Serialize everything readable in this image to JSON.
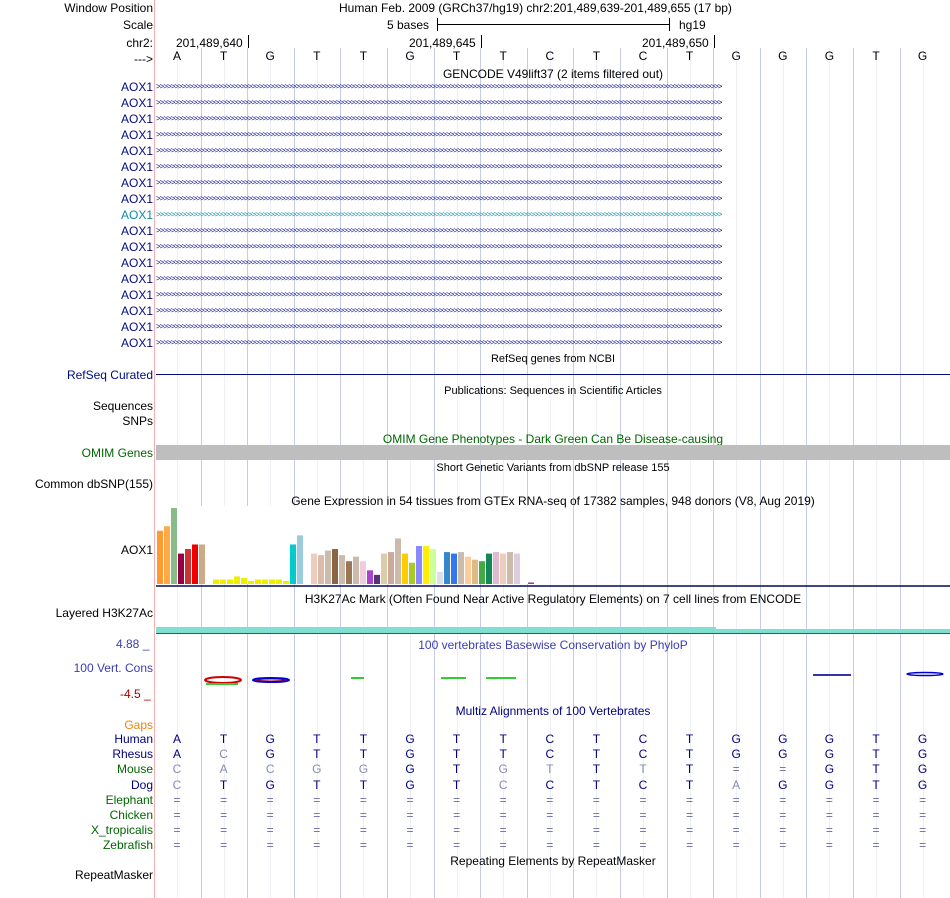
{
  "header": {
    "window_position_label": "Window Position",
    "position_title": "Human Feb. 2009 (GRCh37/hg19)   chr2:201,489,639-201,489,655 (17 bp)",
    "scale_label": "Scale",
    "scale_text": "5 bases",
    "assembly": "hg19",
    "chrom_label": "chr2:",
    "coords": [
      "201,489,640",
      "201,489,645",
      "201,489,650"
    ],
    "strand_label": "--->"
  },
  "bases": [
    "A",
    "T",
    "G",
    "T",
    "T",
    "G",
    "T",
    "T",
    "C",
    "T",
    "C",
    "T",
    "G",
    "G",
    "G",
    "T",
    "G"
  ],
  "gencode": {
    "title": "GENCODE V49lift37 (2 items filtered out)",
    "transcripts": [
      {
        "label": "AOX1",
        "color": "#000c80"
      },
      {
        "label": "AOX1",
        "color": "#000c80"
      },
      {
        "label": "AOX1",
        "color": "#000c80"
      },
      {
        "label": "AOX1",
        "color": "#000c80"
      },
      {
        "label": "AOX1",
        "color": "#000c80"
      },
      {
        "label": "AOX1",
        "color": "#000c80"
      },
      {
        "label": "AOX1",
        "color": "#000c80"
      },
      {
        "label": "AOX1",
        "color": "#000c80"
      },
      {
        "label": "AOX1",
        "color": "#0c8caa"
      },
      {
        "label": "AOX1",
        "color": "#000c80"
      },
      {
        "label": "AOX1",
        "color": "#000c80"
      },
      {
        "label": "AOX1",
        "color": "#000c80"
      },
      {
        "label": "AOX1",
        "color": "#000c80"
      },
      {
        "label": "AOX1",
        "color": "#000c80"
      },
      {
        "label": "AOX1",
        "color": "#000c80"
      },
      {
        "label": "AOX1",
        "color": "#000c80"
      },
      {
        "label": "AOX1",
        "color": "#000c80"
      }
    ]
  },
  "refseq": {
    "title": "RefSeq genes from NCBI",
    "label": "RefSeq Curated"
  },
  "pubs": {
    "title": "Publications: Sequences in Scientific Articles",
    "label1": "Sequences",
    "label2": "SNPs"
  },
  "omim": {
    "title": "OMIM Gene Phenotypes - Dark Green Can Be Disease-causing",
    "label": "OMIM Genes"
  },
  "dbsnp": {
    "title": "Short Genetic Variants from dbSNP release 155",
    "label": "Common dbSNP(155)"
  },
  "gtex": {
    "title": "Gene Expression in 54 tissues from GTEx RNA-seq of 17382 samples, 948 donors (V8, Aug 2019)",
    "label": "AOX1",
    "values": [
      35,
      38,
      50,
      20,
      23,
      26,
      26,
      26,
      3,
      3,
      3,
      5,
      4,
      2,
      3,
      3,
      3,
      3,
      2,
      26,
      32,
      22,
      20,
      19,
      22,
      23,
      19,
      15,
      18,
      15,
      9,
      6,
      20,
      21,
      30,
      20,
      14,
      25,
      25,
      23,
      8,
      21,
      20,
      21,
      18,
      16,
      15,
      20,
      21,
      20,
      21,
      20,
      0,
      1
    ],
    "colors": [
      "#ff9933",
      "#ffaa44",
      "#88bb88",
      "#990044",
      "#cc3333",
      "#ee0000",
      "#ccaa88",
      "#ffffff",
      "#eeee00",
      "#eeee00",
      "#eeee00",
      "#eeee00",
      "#eeee00",
      "#eeee00",
      "#eeee00",
      "#eeee00",
      "#eeee00",
      "#eeee00",
      "#eeee00",
      "#00cccc",
      "#99ccdd",
      "#ffffff",
      "#eeccbb",
      "#ddbbaa",
      "#ccbbaa",
      "#886644",
      "#ccbbaa",
      "#997755",
      "#ccbbaa",
      "#eeccdd",
      "#aa44cc",
      "#553377",
      "#ddccaa",
      "#ccaa99",
      "#ccbbaa",
      "#ffcc00",
      "#aacc22",
      "#8888ff",
      "#ffee00",
      "#ccff99",
      "#ddddee",
      "#3388cc",
      "#3377ee",
      "#ccbbaa",
      "#ffcc99",
      "#ddbb88",
      "#44aa44",
      "#118855",
      "#ddbbcc",
      "#eeccbb",
      "#ccbbaa",
      "#ddccdd",
      "#aa88aa",
      "#aa3399"
    ]
  },
  "h3k27ac": {
    "title": "H3K27Ac Mark (Often Found Near Active Regulatory Elements) on 7 cell lines from ENCODE",
    "label": "Layered H3K27Ac"
  },
  "phylop": {
    "title": "100 vertebrates Basewise Conservation by PhyloP",
    "label": "100 Vert. Cons",
    "max": "4.88 _",
    "min": "-4.5 _"
  },
  "multiz": {
    "title": "Multiz Alignments of 100 Vertebrates",
    "gaps_label": "Gaps",
    "species": [
      {
        "name": "Human",
        "color": "#000080",
        "seq": [
          "A",
          "T",
          "G",
          "T",
          "T",
          "G",
          "T",
          "T",
          "C",
          "T",
          "C",
          "T",
          "G",
          "G",
          "G",
          "T",
          "G"
        ]
      },
      {
        "name": "Rhesus",
        "color": "#000080",
        "seq": [
          "A",
          "C",
          "G",
          "T",
          "T",
          "G",
          "T",
          "T",
          "C",
          "T",
          "C",
          "T",
          "G",
          "G",
          "G",
          "T",
          "G"
        ]
      },
      {
        "name": "Mouse",
        "color": "#006600",
        "seq": [
          "C",
          "A",
          "C",
          "G",
          "G",
          "G",
          "T",
          "G",
          "T",
          "T",
          "T",
          "T",
          "=",
          "=",
          "G",
          "T",
          "G"
        ]
      },
      {
        "name": "Dog",
        "color": "#000080",
        "seq": [
          "C",
          "T",
          "G",
          "T",
          "T",
          "G",
          "T",
          "C",
          "C",
          "T",
          "C",
          "T",
          "A",
          "G",
          "G",
          "T",
          "G"
        ]
      },
      {
        "name": "Elephant",
        "color": "#006600",
        "seq": [
          "=",
          "=",
          "=",
          "=",
          "=",
          "=",
          "=",
          "=",
          "=",
          "=",
          "=",
          "=",
          "=",
          "=",
          "=",
          "=",
          "="
        ]
      },
      {
        "name": "Chicken",
        "color": "#006600",
        "seq": [
          "=",
          "=",
          "=",
          "=",
          "=",
          "=",
          "=",
          "=",
          "=",
          "=",
          "=",
          "=",
          "=",
          "=",
          "=",
          "=",
          "="
        ]
      },
      {
        "name": "X_tropicalis",
        "color": "#006600",
        "seq": [
          "=",
          "=",
          "=",
          "=",
          "=",
          "=",
          "=",
          "=",
          "=",
          "=",
          "=",
          "=",
          "=",
          "=",
          "=",
          "=",
          "="
        ]
      },
      {
        "name": "Zebrafish",
        "color": "#006600",
        "seq": [
          "=",
          "=",
          "=",
          "=",
          "=",
          "=",
          "=",
          "=",
          "=",
          "=",
          "=",
          "=",
          "=",
          "=",
          "=",
          "=",
          "="
        ]
      }
    ],
    "faded": [
      [],
      [
        1
      ],
      [
        0,
        1,
        2,
        3,
        4,
        7,
        8,
        10,
        12,
        13
      ],
      [
        0,
        7,
        12
      ]
    ]
  },
  "repeatmasker": {
    "title": "Repeating Elements by RepeatMasker",
    "label": "RepeatMasker"
  },
  "arrows": ">>>>>>>>>>>>>>>>>>>>>>>>>>>>>>>>>>>>>>>>>>>>>>>>>>>>>>>>>>>>>>>>>>>>>>>>>>>>>>>>>>>>>>>>>>>>>>>>>>>>>>>>>>>>>>>>>>>>>>>>>>>>>>>>>>>>>>>>>>>>>>>>>>>>>>>>>>"
}
